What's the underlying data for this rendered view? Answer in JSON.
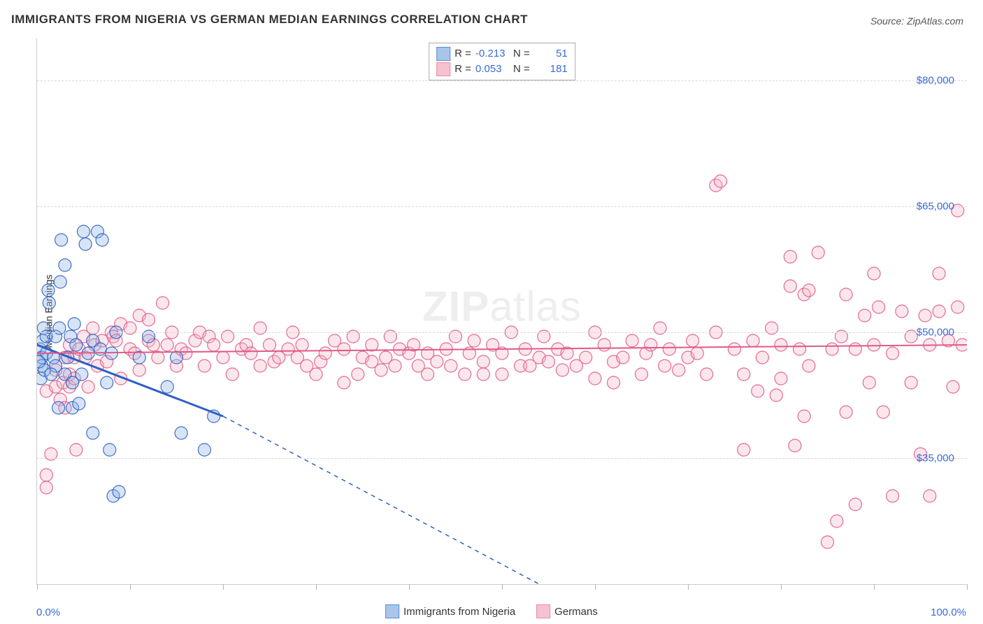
{
  "title": "IMMIGRANTS FROM NIGERIA VS GERMAN MEDIAN EARNINGS CORRELATION CHART",
  "source": "Source: ZipAtlas.com",
  "watermark": {
    "bold": "ZIP",
    "light": "atlas"
  },
  "chart": {
    "type": "scatter",
    "ylabel": "Median Earnings",
    "xlim": [
      0,
      100
    ],
    "ylim": [
      20000,
      85000
    ],
    "yticks": [
      35000,
      50000,
      65000,
      80000
    ],
    "ytick_labels": [
      "$35,000",
      "$50,000",
      "$65,000",
      "$80,000"
    ],
    "xticks": [
      0,
      10,
      20,
      30,
      40,
      50,
      60,
      70,
      80,
      90,
      100
    ],
    "xaxis_left_label": "0.0%",
    "xaxis_right_label": "100.0%",
    "marker_radius": 9,
    "marker_fill_opacity": 0.35,
    "marker_stroke_opacity": 0.9,
    "marker_stroke_width": 1.2,
    "grid_color": "#d7d7d7",
    "axis_color": "#cccccc",
    "background_color": "#ffffff"
  },
  "legend_top": [
    {
      "swatch_fill": "#a9c5ea",
      "swatch_border": "#5a8cd6",
      "r_label": "R =",
      "r_value": "-0.213",
      "n_label": "N =",
      "n_value": "51"
    },
    {
      "swatch_fill": "#f6c2cf",
      "swatch_border": "#e98aa3",
      "r_label": "R =",
      "r_value": "0.053",
      "n_label": "N =",
      "n_value": "181"
    }
  ],
  "legend_bottom": [
    {
      "swatch_fill": "#a9c5ea",
      "swatch_border": "#5a8cd6",
      "label": "Immigrants from Nigeria"
    },
    {
      "swatch_fill": "#f6c2cf",
      "swatch_border": "#e98aa3",
      "label": "Germans"
    }
  ],
  "series": [
    {
      "name": "Immigrants from Nigeria",
      "color": "#2f5fc4",
      "fill": "#8cb2e6",
      "regression": {
        "solid_from": [
          0,
          48500
        ],
        "solid_to": [
          20,
          40000
        ],
        "dash_from": [
          20,
          40000
        ],
        "dash_to": [
          54,
          20000
        ],
        "line_width": 3,
        "dash_width": 1.5
      },
      "points": [
        [
          0.3,
          48000
        ],
        [
          0.5,
          47000
        ],
        [
          0.5,
          46000
        ],
        [
          0.4,
          44500
        ],
        [
          0.6,
          49000
        ],
        [
          0.7,
          50500
        ],
        [
          0.8,
          45500
        ],
        [
          1.0,
          47500
        ],
        [
          1.0,
          49500
        ],
        [
          1.2,
          55000
        ],
        [
          1.3,
          53500
        ],
        [
          1.8,
          47000
        ],
        [
          2.0,
          49500
        ],
        [
          2.0,
          46000
        ],
        [
          0.2,
          46500
        ],
        [
          2.3,
          41000
        ],
        [
          2.4,
          50500
        ],
        [
          2.6,
          61000
        ],
        [
          2.5,
          56000
        ],
        [
          1.5,
          45000
        ],
        [
          3.0,
          45000
        ],
        [
          3.0,
          58000
        ],
        [
          3.3,
          47000
        ],
        [
          3.6,
          49500
        ],
        [
          3.8,
          44000
        ],
        [
          3.8,
          41000
        ],
        [
          4.0,
          51000
        ],
        [
          4.2,
          48500
        ],
        [
          4.5,
          41500
        ],
        [
          4.8,
          45000
        ],
        [
          5.0,
          62000
        ],
        [
          5.2,
          60500
        ],
        [
          5.5,
          47500
        ],
        [
          6.0,
          49000
        ],
        [
          6.0,
          38000
        ],
        [
          6.8,
          48000
        ],
        [
          6.5,
          62000
        ],
        [
          7.0,
          61000
        ],
        [
          7.5,
          44000
        ],
        [
          8.0,
          47500
        ],
        [
          8.5,
          50000
        ],
        [
          7.8,
          36000
        ],
        [
          8.2,
          30500
        ],
        [
          8.8,
          31000
        ],
        [
          11.0,
          47000
        ],
        [
          12.0,
          49500
        ],
        [
          14.0,
          43500
        ],
        [
          15.0,
          47000
        ],
        [
          15.5,
          38000
        ],
        [
          18.0,
          36000
        ],
        [
          19.0,
          40000
        ]
      ]
    },
    {
      "name": "Germans",
      "color": "#e05a87",
      "fill": "#f4b6c8",
      "regression": {
        "solid_from": [
          0,
          47500
        ],
        "solid_to": [
          100,
          48500
        ],
        "line_width": 2
      },
      "points": [
        [
          1.0,
          43000
        ],
        [
          1.0,
          33000
        ],
        [
          1.0,
          31500
        ],
        [
          1.5,
          35500
        ],
        [
          2.0,
          43500
        ],
        [
          2.0,
          45500
        ],
        [
          2.5,
          42000
        ],
        [
          2.8,
          44000
        ],
        [
          3.0,
          41000
        ],
        [
          3.0,
          47000
        ],
        [
          3.5,
          48500
        ],
        [
          3.5,
          45000
        ],
        [
          3.5,
          43500
        ],
        [
          4.0,
          44500
        ],
        [
          4.0,
          47000
        ],
        [
          4.2,
          36000
        ],
        [
          4.5,
          48000
        ],
        [
          5.0,
          49500
        ],
        [
          5.2,
          47000
        ],
        [
          5.5,
          43500
        ],
        [
          6.0,
          50500
        ],
        [
          6.2,
          48500
        ],
        [
          6.5,
          46000
        ],
        [
          7.0,
          49000
        ],
        [
          7.5,
          46500
        ],
        [
          8.0,
          50000
        ],
        [
          8.2,
          49500
        ],
        [
          8.5,
          49000
        ],
        [
          9.0,
          44500
        ],
        [
          9.0,
          51000
        ],
        [
          10.0,
          48000
        ],
        [
          10.0,
          50500
        ],
        [
          10.5,
          47500
        ],
        [
          11.0,
          45500
        ],
        [
          11.0,
          52000
        ],
        [
          12.0,
          49000
        ],
        [
          12.0,
          51500
        ],
        [
          12.5,
          48500
        ],
        [
          13.0,
          47000
        ],
        [
          13.5,
          53500
        ],
        [
          14.0,
          48500
        ],
        [
          14.5,
          50000
        ],
        [
          15.0,
          46000
        ],
        [
          15.5,
          48000
        ],
        [
          16.0,
          47500
        ],
        [
          17.0,
          49000
        ],
        [
          17.5,
          50000
        ],
        [
          18.0,
          46000
        ],
        [
          18.5,
          49500
        ],
        [
          19.0,
          48500
        ],
        [
          20.0,
          47000
        ],
        [
          20.5,
          49500
        ],
        [
          21.0,
          45000
        ],
        [
          22.0,
          48000
        ],
        [
          22.5,
          48500
        ],
        [
          23.0,
          47500
        ],
        [
          24.0,
          46000
        ],
        [
          24.0,
          50500
        ],
        [
          25.0,
          48500
        ],
        [
          25.5,
          46500
        ],
        [
          26.0,
          47000
        ],
        [
          27.0,
          48000
        ],
        [
          27.5,
          50000
        ],
        [
          28.0,
          47000
        ],
        [
          28.5,
          48500
        ],
        [
          29.0,
          46000
        ],
        [
          30.0,
          45000
        ],
        [
          30.5,
          46500
        ],
        [
          31.0,
          47500
        ],
        [
          32.0,
          49000
        ],
        [
          33.0,
          48000
        ],
        [
          33.0,
          44000
        ],
        [
          34.0,
          49500
        ],
        [
          34.5,
          45000
        ],
        [
          35.0,
          47000
        ],
        [
          36.0,
          48500
        ],
        [
          36.0,
          46500
        ],
        [
          37.0,
          45500
        ],
        [
          37.5,
          47000
        ],
        [
          38.0,
          49500
        ],
        [
          38.5,
          46000
        ],
        [
          39.0,
          48000
        ],
        [
          40.0,
          47500
        ],
        [
          40.5,
          48500
        ],
        [
          41.0,
          46000
        ],
        [
          42.0,
          45000
        ],
        [
          42.0,
          47500
        ],
        [
          43.0,
          46500
        ],
        [
          44.0,
          48000
        ],
        [
          44.5,
          46000
        ],
        [
          45.0,
          49500
        ],
        [
          46.0,
          45000
        ],
        [
          46.5,
          47500
        ],
        [
          47.0,
          49000
        ],
        [
          48.0,
          46500
        ],
        [
          48.0,
          45000
        ],
        [
          49.0,
          48500
        ],
        [
          50.0,
          45000
        ],
        [
          50.0,
          47500
        ],
        [
          51.0,
          50000
        ],
        [
          52.0,
          46000
        ],
        [
          52.5,
          48000
        ],
        [
          53.0,
          46000
        ],
        [
          54.0,
          47000
        ],
        [
          54.5,
          49500
        ],
        [
          55.0,
          46500
        ],
        [
          56.0,
          48000
        ],
        [
          56.5,
          45500
        ],
        [
          57.0,
          47500
        ],
        [
          58.0,
          46000
        ],
        [
          59.0,
          47000
        ],
        [
          60.0,
          44500
        ],
        [
          60.0,
          50000
        ],
        [
          61.0,
          48500
        ],
        [
          62.0,
          46500
        ],
        [
          62.0,
          44000
        ],
        [
          63.0,
          47000
        ],
        [
          64.0,
          49000
        ],
        [
          65.0,
          45000
        ],
        [
          65.5,
          47500
        ],
        [
          66.0,
          48500
        ],
        [
          67.0,
          50500
        ],
        [
          67.5,
          46000
        ],
        [
          68.0,
          48000
        ],
        [
          69.0,
          45500
        ],
        [
          70.0,
          47000
        ],
        [
          70.5,
          49000
        ],
        [
          71.0,
          47500
        ],
        [
          72.0,
          45000
        ],
        [
          73.0,
          50000
        ],
        [
          73.0,
          67500
        ],
        [
          73.5,
          68000
        ],
        [
          75.0,
          48000
        ],
        [
          76.0,
          45000
        ],
        [
          76.0,
          36000
        ],
        [
          77.0,
          49000
        ],
        [
          77.5,
          43000
        ],
        [
          78.0,
          47000
        ],
        [
          79.0,
          50500
        ],
        [
          79.5,
          42500
        ],
        [
          80.0,
          48500
        ],
        [
          80.0,
          44500
        ],
        [
          81.0,
          55500
        ],
        [
          81.0,
          59000
        ],
        [
          81.5,
          36500
        ],
        [
          82.0,
          48000
        ],
        [
          82.5,
          54500
        ],
        [
          82.5,
          40000
        ],
        [
          83.0,
          55000
        ],
        [
          83.0,
          46000
        ],
        [
          84.0,
          59500
        ],
        [
          85.0,
          25000
        ],
        [
          85.5,
          48000
        ],
        [
          86.0,
          27500
        ],
        [
          86.5,
          49500
        ],
        [
          87.0,
          54500
        ],
        [
          87.0,
          40500
        ],
        [
          88.0,
          48000
        ],
        [
          88.0,
          29500
        ],
        [
          89.0,
          52000
        ],
        [
          89.5,
          44000
        ],
        [
          90.0,
          57000
        ],
        [
          90.0,
          48500
        ],
        [
          90.5,
          53000
        ],
        [
          91.0,
          40500
        ],
        [
          92.0,
          47500
        ],
        [
          92.0,
          30500
        ],
        [
          93.0,
          52500
        ],
        [
          94.0,
          44000
        ],
        [
          94.0,
          49500
        ],
        [
          95.0,
          35500
        ],
        [
          95.5,
          52000
        ],
        [
          96.0,
          30500
        ],
        [
          96.0,
          48500
        ],
        [
          97.0,
          52500
        ],
        [
          97.0,
          57000
        ],
        [
          98.0,
          49000
        ],
        [
          98.5,
          43500
        ],
        [
          99.0,
          64500
        ],
        [
          99.0,
          53000
        ],
        [
          99.5,
          48500
        ]
      ]
    }
  ]
}
